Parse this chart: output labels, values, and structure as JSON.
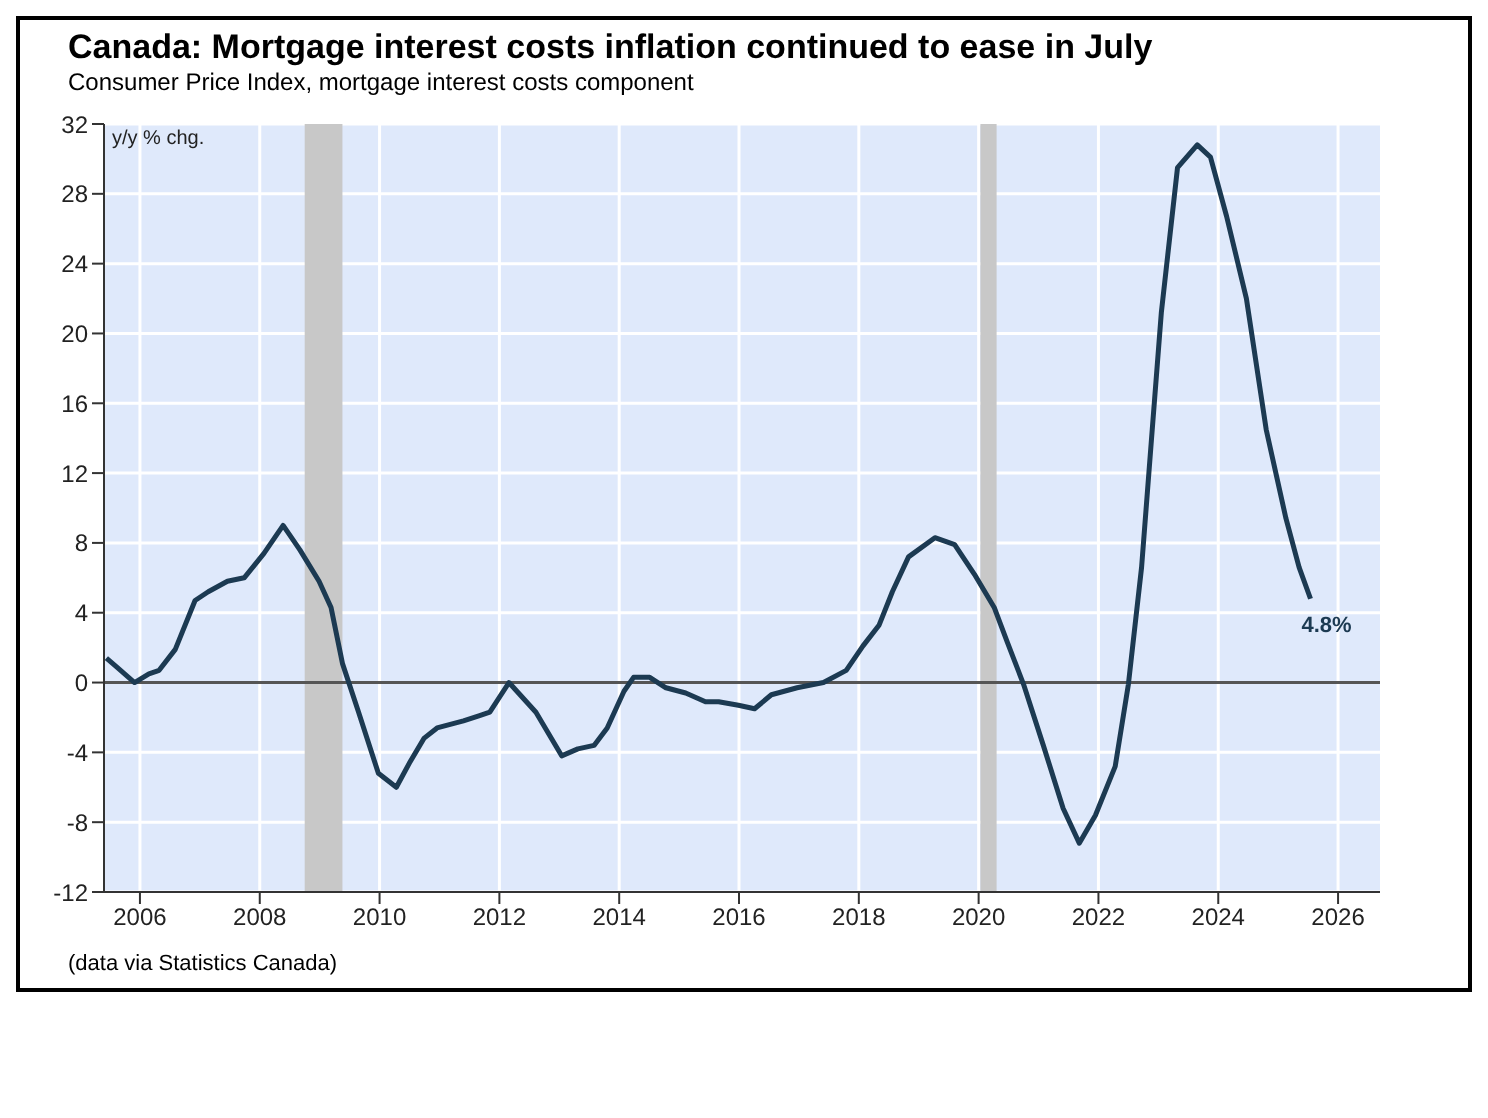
{
  "chart_data": {
    "type": "line",
    "title": "Canada: Mortgage interest costs inflation continued to ease in July",
    "subtitle": "Consumer Price Index, mortgage interest costs component",
    "ylabel": "y/y % chg.",
    "annotations": [
      {
        "text": "4.8%",
        "x": 2025.54,
        "y": 4.8
      },
      "(data via Statistics Canada)"
    ],
    "x": [
      2005.44,
      2005.61,
      2005.91,
      2006.15,
      2006.32,
      2006.59,
      2006.92,
      2007.14,
      2007.46,
      2007.74,
      2008.07,
      2008.39,
      2008.67,
      2008.99,
      2009.19,
      2009.38,
      2009.65,
      2009.98,
      2010.28,
      2010.5,
      2010.74,
      2010.96,
      2011.4,
      2011.67,
      2011.84,
      2012.16,
      2012.61,
      2013.04,
      2013.31,
      2013.58,
      2013.8,
      2014.08,
      2014.24,
      2014.51,
      2014.78,
      2015.11,
      2015.44,
      2015.66,
      2015.99,
      2016.26,
      2016.54,
      2016.97,
      2017.41,
      2017.79,
      2018.07,
      2018.34,
      2018.56,
      2018.83,
      2019.27,
      2019.6,
      2019.93,
      2020.26,
      2020.48,
      2020.75,
      2021.08,
      2021.41,
      2021.68,
      2021.95,
      2022.28,
      2022.5,
      2022.72,
      2022.88,
      2023.05,
      2023.32,
      2023.65,
      2023.87,
      2024.14,
      2024.47,
      2024.8,
      2025.13,
      2025.35,
      2025.54
    ],
    "series": [
      {
        "color": "#1c3a52",
        "values": [
          1.4,
          0.9,
          0,
          0.5,
          0.7,
          1.9,
          4.7,
          5.2,
          5.8,
          6.0,
          7.4,
          9.0,
          7.6,
          5.8,
          4.3,
          1.1,
          -1.7,
          -5.2,
          -6.0,
          -4.6,
          -3.2,
          -2.6,
          -2.2,
          -1.9,
          -1.7,
          0,
          -1.7,
          -4.2,
          -3.8,
          -3.6,
          -2.6,
          -0.5,
          0.3,
          0.3,
          -0.3,
          -0.6,
          -1.1,
          -1.1,
          -1.3,
          -1.5,
          -0.7,
          -0.3,
          0,
          0.7,
          2.1,
          3.3,
          5.2,
          7.2,
          8.3,
          7.9,
          6.2,
          4.3,
          2.3,
          -0.1,
          -3.6,
          -7.2,
          -9.2,
          -7.6,
          -4.8,
          -0.1,
          6.6,
          13.7,
          21.2,
          29.5,
          30.8,
          30.1,
          26.7,
          22.0,
          14.5,
          9.4,
          6.6,
          4.8
        ]
      }
    ],
    "xlim": [
      2005.4,
      2026.7
    ],
    "xticks": [
      2006,
      2008,
      2010,
      2012,
      2014,
      2016,
      2018,
      2020,
      2022,
      2024,
      2026
    ],
    "ylim": [
      -12,
      32
    ],
    "yticks": [
      -12,
      -8,
      -4,
      0,
      4,
      8,
      12,
      16,
      20,
      24,
      28,
      32
    ],
    "grid": true,
    "bands": [
      {
        "axis": "x",
        "from": 2008.75,
        "to": 2009.38,
        "color": "#c8c8c8"
      },
      {
        "axis": "x",
        "from": 2020.03,
        "to": 2020.3,
        "color": "#c8c8c8"
      }
    ],
    "ref_lines": [
      {
        "axis": "y",
        "value": 0,
        "color": "#555555"
      }
    ]
  }
}
